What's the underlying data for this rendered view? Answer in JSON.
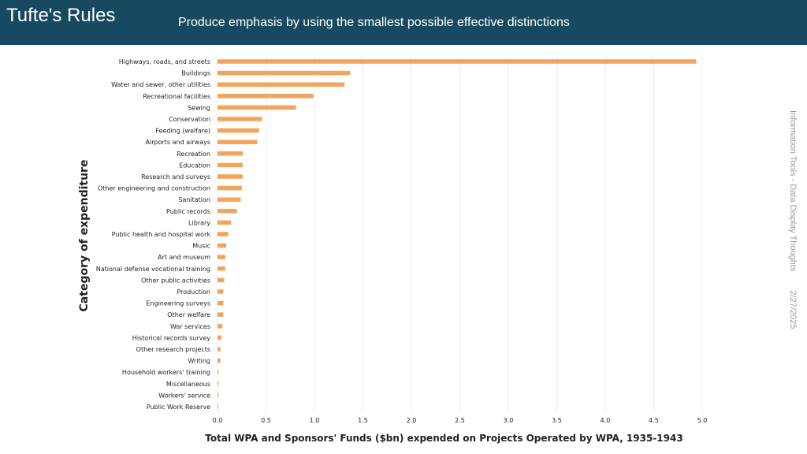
{
  "slide": {
    "title": "Tufte's Rules",
    "subtitle": "Produce emphasis by using the smallest possible effective distinctions",
    "footer_source": "Information Tools - Data Display Thoughts",
    "footer_date": "2/27/2025"
  },
  "colors": {
    "header_bg": "#174a61",
    "bar": "#f2a45c",
    "grid": "#e3ecf2",
    "text": "#222222"
  },
  "chart_data": {
    "type": "bar",
    "orientation": "horizontal",
    "xlabel": "Total WPA and Sponsors' Funds ($bn) expended on Projects Operated by WPA, 1935-1943",
    "ylabel": "Category of expenditure",
    "xlim": [
      0,
      5.0
    ],
    "xticks": [
      "0.0",
      "0.5",
      "1.0",
      "1.5",
      "2.0",
      "2.5",
      "3.0",
      "3.5",
      "4.0",
      "4.5",
      "5.0"
    ],
    "grid": "vertical",
    "categories": [
      "Highways, roads, and streets",
      "Buildings",
      "Water and sewer, other utilities",
      "Recreational facilities",
      "Sewing",
      "Conservation",
      "Feeding (welfare)",
      "Airports and airways",
      "Recreation",
      "Education",
      "Research and surveys",
      "Other engineering and construction",
      "Sanitation",
      "Public records",
      "Library",
      "Public health and hospital work",
      "Music",
      "Art and museum",
      "National defense vocational training",
      "Other public activities",
      "Production",
      "Engineering surveys",
      "Other welfare",
      "War services",
      "Historical records survey",
      "Other research projects",
      "Writing",
      "Household workers' training",
      "Miscellaneous",
      "Workers' service",
      "Public Work Reserve"
    ],
    "values": [
      4.94,
      1.37,
      1.31,
      0.99,
      0.81,
      0.46,
      0.43,
      0.41,
      0.26,
      0.26,
      0.26,
      0.25,
      0.24,
      0.2,
      0.14,
      0.11,
      0.09,
      0.08,
      0.08,
      0.07,
      0.06,
      0.06,
      0.06,
      0.05,
      0.04,
      0.03,
      0.03,
      0.01,
      0.01,
      0.01,
      0.005
    ]
  }
}
